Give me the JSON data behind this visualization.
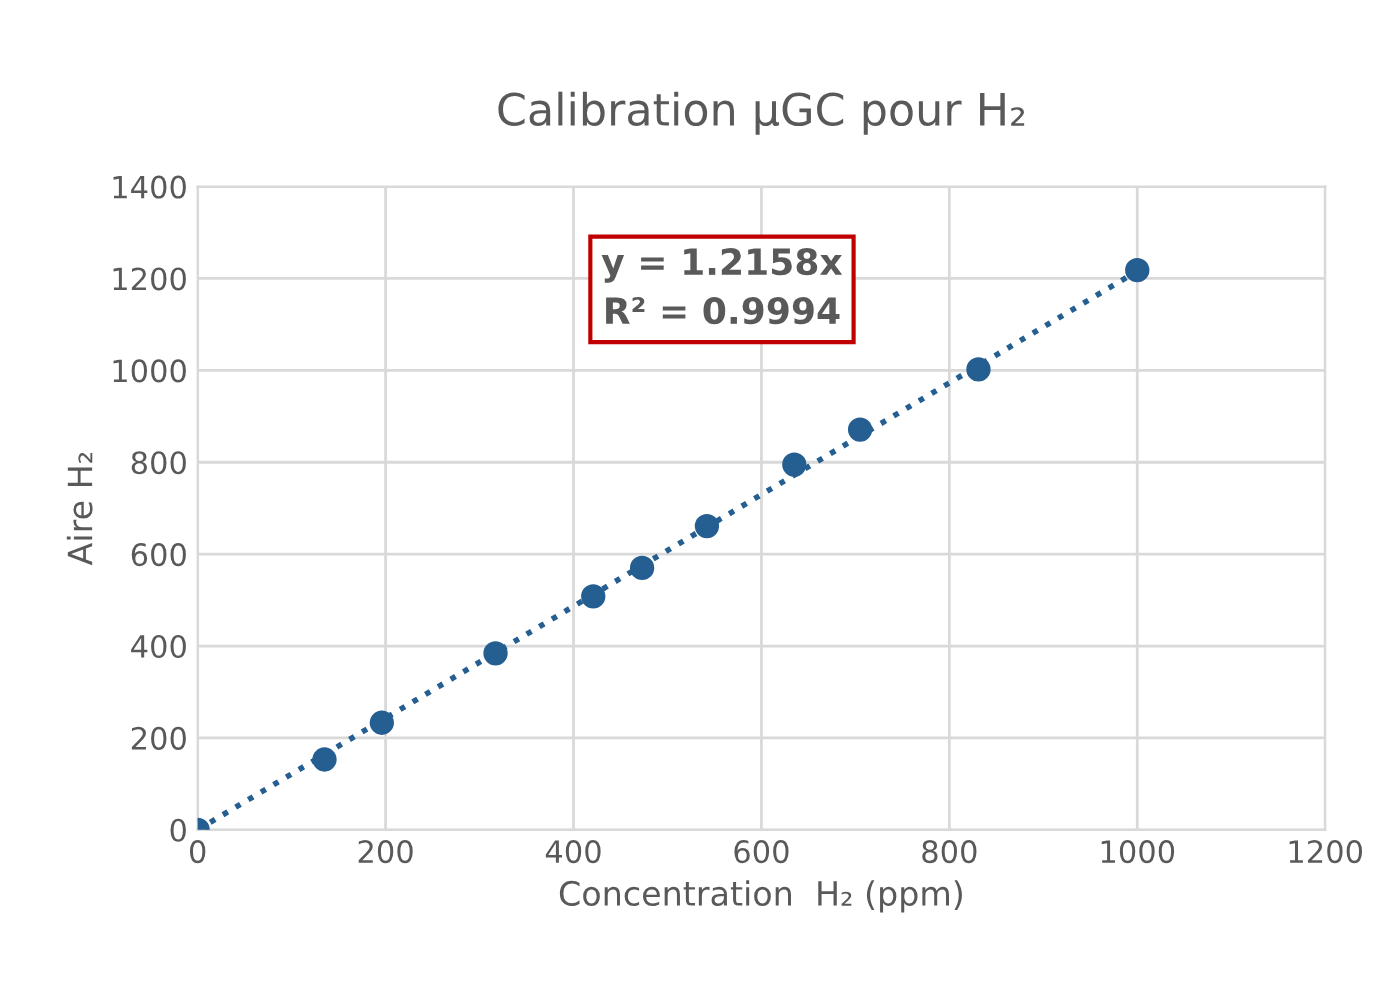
{
  "chart_data": {
    "type": "scatter",
    "title": "Calibration µGC pour H₂",
    "xlabel": "Concentration  H₂ (ppm)",
    "ylabel": "Aire H₂",
    "annotations": [
      "y = 1.2158x\nR² = 0.9994"
    ],
    "series": [
      {
        "color": "#255e91",
        "marker": "circle",
        "x": [
          0,
          135,
          196,
          317,
          421,
          473,
          542,
          635,
          705,
          831,
          1000
        ],
        "values": [
          0,
          153,
          233,
          384,
          508,
          570,
          661,
          795,
          871,
          1002,
          1218
        ]
      },
      {
        "type": "line",
        "color": "#255e91",
        "line_style": "dotted",
        "marker": "none",
        "x": [
          0,
          1000
        ],
        "values": [
          0,
          1216
        ]
      }
    ],
    "xlim": [
      0,
      1200
    ],
    "xticks": [
      0,
      200,
      400,
      600,
      800,
      1000,
      1200
    ],
    "ylim": [
      0,
      1400
    ],
    "yticks": [
      0,
      200,
      400,
      600,
      800,
      1000,
      1200,
      1400
    ],
    "grid": true,
    "legend": false
  }
}
